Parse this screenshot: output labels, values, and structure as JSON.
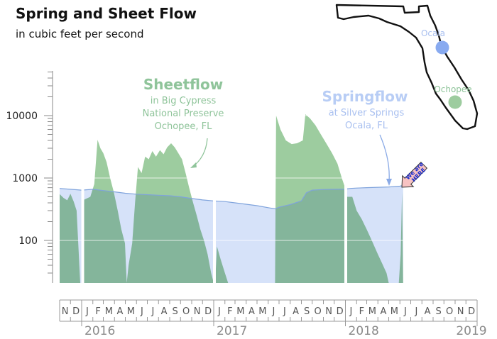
{
  "title": "Spring and Sheet Flow",
  "subtitle": "in cubic feet per second",
  "colors": {
    "sheetflow": "#9dcc9f",
    "springflow": "#cddcf8",
    "overlap": "#9ec3b5",
    "springflow_line": "#7fa3dc",
    "ocala_dot": "#88aaf0",
    "ochopee_dot": "#9dcc9f",
    "here_sign": "#f7c2c2"
  },
  "annotations": {
    "sheetflow": {
      "heading": "Sheetflow",
      "line1": "in Big Cypress",
      "line2": "National Preserve",
      "line3": "Ochopee, FL"
    },
    "springflow": {
      "heading": "Springflow",
      "line1": "at Silver Springs",
      "line2": "Ocala, FL"
    },
    "here_sign": {
      "line1": "We are",
      "line2": "HERE"
    }
  },
  "map": {
    "ocala_label": "Ocala",
    "ochopee_label": "Ochopee"
  },
  "chart_data": {
    "type": "area",
    "title": "Spring and Sheet Flow",
    "subtitle": "in cubic feet per second",
    "yscale": "log",
    "ylim": [
      20,
      60000
    ],
    "yticks": [
      {
        "value": 100,
        "label": "100"
      },
      {
        "value": 1000,
        "label": "1000"
      },
      {
        "value": 10000,
        "label": "10000"
      }
    ],
    "xlim": [
      "2015-11-01",
      "2019-01-01"
    ],
    "month_labels": [
      "N",
      "D",
      "J",
      "F",
      "M",
      "A",
      "M",
      "J",
      "J",
      "A",
      "S",
      "O",
      "N",
      "D",
      "J",
      "F",
      "M",
      "A",
      "M",
      "J",
      "J",
      "A",
      "S",
      "O",
      "N",
      "D",
      "J",
      "F",
      "M",
      "A",
      "M",
      "J",
      "J",
      "A",
      "S",
      "O",
      "N",
      "D"
    ],
    "year_labels": [
      {
        "date": "2016-01-01",
        "label": "2016"
      },
      {
        "date": "2017-01-01",
        "label": "2017"
      },
      {
        "date": "2018-01-01",
        "label": "2018"
      },
      {
        "date": "2019-01-01",
        "label": "2019"
      }
    ],
    "series": [
      {
        "name": "Sheetflow",
        "points": [
          [
            "2015-11-01",
            550
          ],
          [
            "2015-11-12",
            480
          ],
          [
            "2015-11-22",
            440
          ],
          [
            "2015-12-01",
            560
          ],
          [
            "2015-12-10",
            420
          ],
          [
            "2015-12-18",
            300
          ],
          [
            "2015-12-28",
            20
          ],
          [
            "2016-01-05",
            20
          ],
          [
            "2016-01-08",
            450
          ],
          [
            "2016-01-25",
            500
          ],
          [
            "2016-02-05",
            800
          ],
          [
            "2016-02-14",
            4100
          ],
          [
            "2016-02-22",
            3000
          ],
          [
            "2016-03-01",
            2500
          ],
          [
            "2016-03-10",
            1800
          ],
          [
            "2016-03-20",
            1000
          ],
          [
            "2016-03-30",
            600
          ],
          [
            "2016-04-10",
            300
          ],
          [
            "2016-04-20",
            150
          ],
          [
            "2016-04-30",
            90
          ],
          [
            "2016-05-05",
            20
          ],
          [
            "2016-05-10",
            40
          ],
          [
            "2016-05-20",
            90
          ],
          [
            "2016-05-28",
            400
          ],
          [
            "2016-06-05",
            1500
          ],
          [
            "2016-06-15",
            1200
          ],
          [
            "2016-06-25",
            2200
          ],
          [
            "2016-07-05",
            2000
          ],
          [
            "2016-07-15",
            2700
          ],
          [
            "2016-07-25",
            2200
          ],
          [
            "2016-08-05",
            2800
          ],
          [
            "2016-08-15",
            2400
          ],
          [
            "2016-08-25",
            3100
          ],
          [
            "2016-09-05",
            3600
          ],
          [
            "2016-09-15",
            3100
          ],
          [
            "2016-09-25",
            2500
          ],
          [
            "2016-10-05",
            2000
          ],
          [
            "2016-10-15",
            1200
          ],
          [
            "2016-10-25",
            700
          ],
          [
            "2016-11-05",
            400
          ],
          [
            "2016-11-15",
            250
          ],
          [
            "2016-11-25",
            150
          ],
          [
            "2016-12-05",
            100
          ],
          [
            "2016-12-15",
            60
          ],
          [
            "2016-12-25",
            30
          ],
          [
            "2017-01-01",
            20
          ],
          [
            "2017-01-05",
            20
          ],
          [
            "2017-01-10",
            80
          ],
          [
            "2017-01-20",
            50
          ],
          [
            "2017-02-01",
            30
          ],
          [
            "2017-02-10",
            20
          ],
          [
            "2017-06-20",
            20
          ],
          [
            "2017-06-23",
            10000
          ],
          [
            "2017-07-05",
            6000
          ],
          [
            "2017-07-20",
            4000
          ],
          [
            "2017-08-05",
            3500
          ],
          [
            "2017-08-20",
            3600
          ],
          [
            "2017-09-05",
            4000
          ],
          [
            "2017-09-12",
            10500
          ],
          [
            "2017-09-25",
            9000
          ],
          [
            "2017-10-10",
            7000
          ],
          [
            "2017-10-25",
            5000
          ],
          [
            "2017-11-10",
            3500
          ],
          [
            "2017-11-25",
            2500
          ],
          [
            "2017-12-10",
            1700
          ],
          [
            "2017-12-22",
            1000
          ],
          [
            "2017-12-31",
            700
          ],
          [
            "2018-01-03",
            20
          ],
          [
            "2018-01-06",
            500
          ],
          [
            "2018-01-20",
            500
          ],
          [
            "2018-02-01",
            300
          ],
          [
            "2018-02-15",
            220
          ],
          [
            "2018-03-01",
            150
          ],
          [
            "2018-03-15",
            100
          ],
          [
            "2018-04-01",
            60
          ],
          [
            "2018-04-15",
            40
          ],
          [
            "2018-04-25",
            30
          ],
          [
            "2018-05-01",
            20
          ],
          [
            "2018-05-29",
            20
          ],
          [
            "2018-06-03",
            60
          ],
          [
            "2018-06-07",
            600
          ],
          [
            "2018-06-10",
            20
          ]
        ]
      },
      {
        "name": "Springflow",
        "points": [
          [
            "2015-11-01",
            680
          ],
          [
            "2015-12-01",
            660
          ],
          [
            "2016-01-01",
            640
          ],
          [
            "2016-02-01",
            660
          ],
          [
            "2016-03-01",
            630
          ],
          [
            "2016-04-01",
            600
          ],
          [
            "2016-05-01",
            570
          ],
          [
            "2016-06-01",
            550
          ],
          [
            "2016-07-01",
            540
          ],
          [
            "2016-08-01",
            530
          ],
          [
            "2016-09-01",
            520
          ],
          [
            "2016-10-01",
            500
          ],
          [
            "2016-11-01",
            470
          ],
          [
            "2016-12-01",
            445
          ],
          [
            "2017-01-01",
            430
          ],
          [
            "2017-02-01",
            420
          ],
          [
            "2017-03-01",
            400
          ],
          [
            "2017-04-01",
            380
          ],
          [
            "2017-05-01",
            360
          ],
          [
            "2017-06-01",
            335
          ],
          [
            "2017-06-20",
            320
          ],
          [
            "2017-07-01",
            340
          ],
          [
            "2017-08-01",
            375
          ],
          [
            "2017-09-01",
            430
          ],
          [
            "2017-09-15",
            580
          ],
          [
            "2017-10-01",
            640
          ],
          [
            "2017-11-01",
            655
          ],
          [
            "2017-12-01",
            660
          ],
          [
            "2017-12-31",
            665
          ],
          [
            "2018-01-15",
            680
          ],
          [
            "2018-02-01",
            690
          ],
          [
            "2018-03-01",
            700
          ],
          [
            "2018-04-01",
            710
          ],
          [
            "2018-05-01",
            720
          ],
          [
            "2018-06-01",
            740
          ],
          [
            "2018-06-10",
            760
          ]
        ]
      }
    ]
  }
}
